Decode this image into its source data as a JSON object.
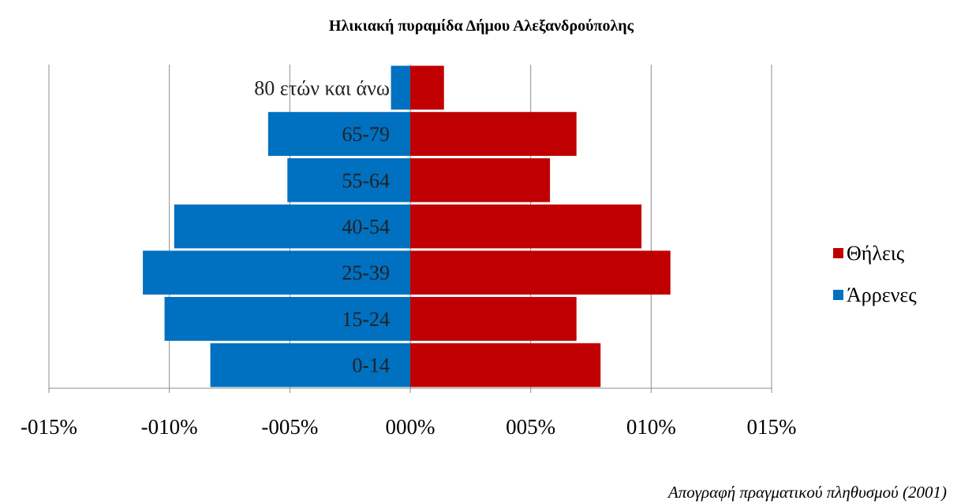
{
  "chart_data": {
    "type": "bar",
    "orientation": "horizontal",
    "title": "Ηλικιακή πυραμίδα Δήμου Αλεξανδρούπολης",
    "source_note": "Απογραφή πραγματικού πληθυσμού (2001)",
    "categories": [
      "0-14",
      "15-24",
      "25-39",
      "40-54",
      "55-64",
      "65-79",
      "80 ετών και άνω"
    ],
    "series": [
      {
        "name": "Θήλεις",
        "color": "#c00000",
        "values": [
          7.9,
          6.9,
          10.8,
          9.6,
          5.8,
          6.9,
          1.4
        ]
      },
      {
        "name": "Άρρενες",
        "color": "#0070c0",
        "values": [
          -8.3,
          -10.2,
          -11.1,
          -9.8,
          -5.1,
          -5.9,
          -0.8
        ]
      }
    ],
    "xlim": [
      -15,
      15
    ],
    "xticks": [
      -15,
      -10,
      -5,
      0,
      5,
      10,
      15
    ],
    "xtick_labels": [
      "-015%",
      "-010%",
      "-005%",
      "000%",
      "005%",
      "010%",
      "015%"
    ],
    "grid": "vertical",
    "legend_position": "right"
  }
}
